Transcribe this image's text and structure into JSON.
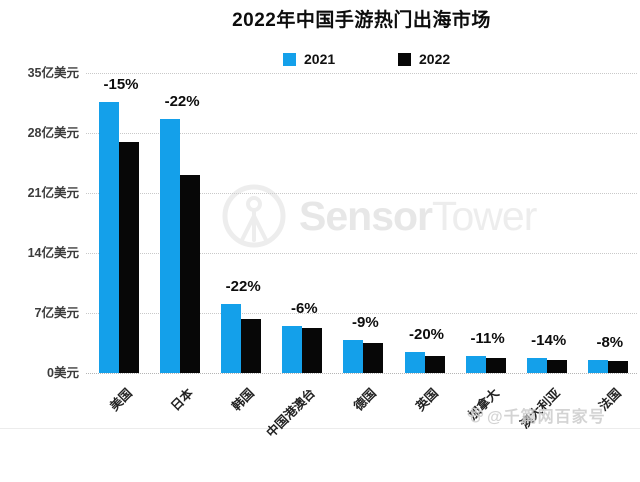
{
  "title": "2022年中国手游热门出海市场",
  "legend": {
    "items": [
      {
        "label": "2021",
        "color": "#14A0EA"
      },
      {
        "label": "2022",
        "color": "#070707"
      }
    ]
  },
  "chart_data": {
    "type": "bar",
    "title": "2022年中国手游热门出海市场",
    "unit": "亿美元",
    "categories": [
      "美国",
      "日本",
      "韩国",
      "中国港澳台",
      "德国",
      "英国",
      "加拿大",
      "澳大利亚",
      "法国"
    ],
    "series": [
      {
        "name": "2021",
        "color": "#14A0EA",
        "values": [
          31.6,
          29.6,
          8.1,
          5.5,
          3.9,
          2.5,
          2.0,
          1.7,
          1.5
        ]
      },
      {
        "name": "2022",
        "color": "#070707",
        "values": [
          26.9,
          23.1,
          6.3,
          5.2,
          3.5,
          2.0,
          1.8,
          1.5,
          1.4
        ]
      }
    ],
    "yoy_change_labels": [
      "-15%",
      "-22%",
      "-22%",
      "-6%",
      "-9%",
      "-20%",
      "-11%",
      "-14%",
      "-8%"
    ],
    "y_axis": {
      "tick_labels": [
        "35亿美元",
        "28亿美元",
        "21亿美元",
        "14亿美元",
        "7亿美元",
        "0美元"
      ],
      "tick_values": [
        35,
        28,
        21,
        14,
        7,
        0
      ],
      "ylim": [
        0,
        35
      ]
    },
    "grid": "horizontal-dotted",
    "legend_position": "top-center"
  },
  "watermarks": {
    "sensor_tower": {
      "bold": "Sensor",
      "light": "Tower",
      "icon": "sensortower-logo"
    },
    "baijiahao": {
      "text": "@千篇网百家号",
      "icon": "baidu-paw-icon"
    }
  }
}
